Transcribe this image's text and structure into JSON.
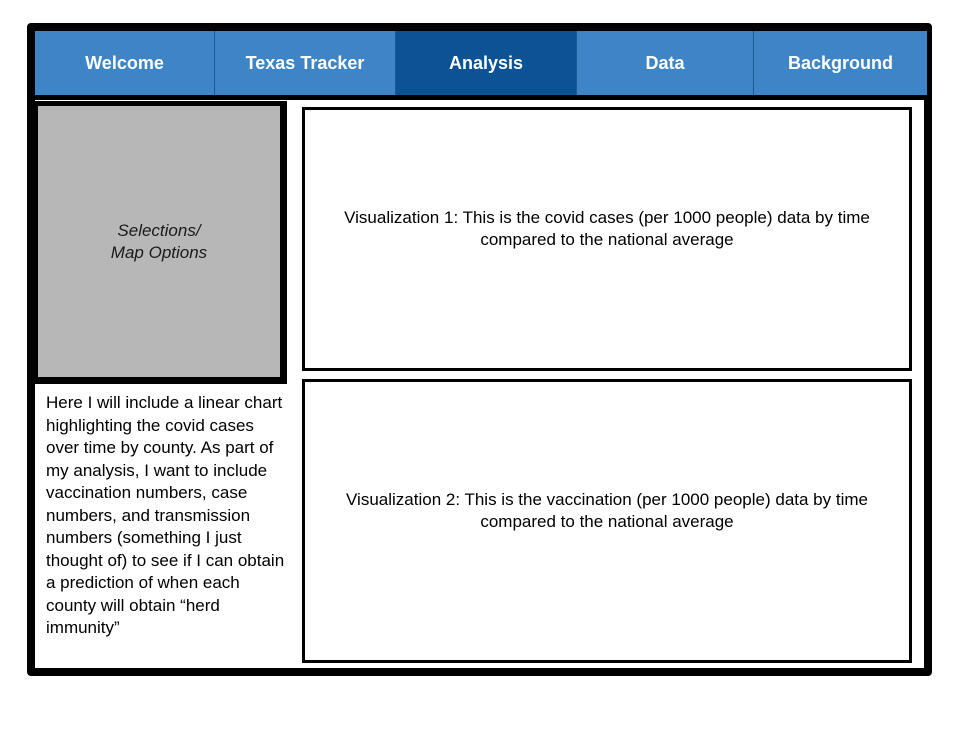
{
  "nav": {
    "tabs": [
      {
        "label": "Welcome"
      },
      {
        "label": "Texas Tracker"
      },
      {
        "label": "Analysis"
      },
      {
        "label": "Data"
      },
      {
        "label": "Background"
      }
    ],
    "active_tab": "Analysis"
  },
  "sidebar": {
    "label": "Selections/\nMap Options"
  },
  "notes": {
    "text": "Here I will include a linear chart highlighting the covid cases over time by county. As part of my analysis, I want to include vaccination numbers, case numbers, and transmission numbers (something I just thought of) to see if I can obtain a prediction of when each county will obtain “herd immunity”"
  },
  "visualizations": [
    {
      "text": "Visualization 1: This is the covid cases (per 1000 people) data by time compared to the national average"
    },
    {
      "text": "Visualization 2: This is the vaccination (per 1000 people) data by time compared to the national average"
    }
  ],
  "colors": {
    "tab": "#3d85c6",
    "tab_active": "#0b5394",
    "sidebar": "#b7b7b7",
    "border": "#000000"
  }
}
